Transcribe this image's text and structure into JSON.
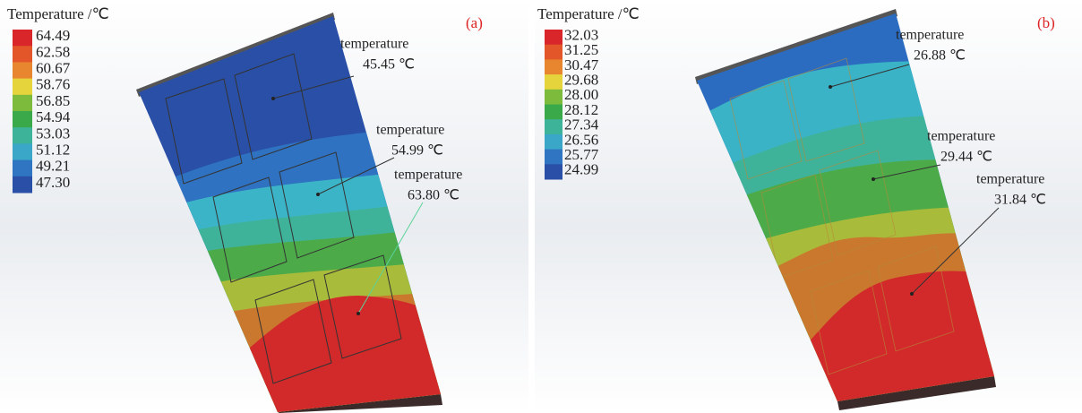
{
  "panels": [
    {
      "label": "(a)",
      "legend": {
        "title": "Temperature /℃",
        "values": [
          "64.49",
          "62.58",
          "60.67",
          "58.76",
          "56.85",
          "54.94",
          "53.03",
          "51.12",
          "49.21",
          "47.30"
        ]
      },
      "annotations": [
        {
          "label": "temperature",
          "value": "45.45 ℃"
        },
        {
          "label": "temperature",
          "value": "54.99 ℃"
        },
        {
          "label": "temperature",
          "value": "63.80 ℃"
        }
      ]
    },
    {
      "label": "(b)",
      "legend": {
        "title": "Temperature /℃",
        "values": [
          "32.03",
          "31.25",
          "30.47",
          "29.68",
          "28.00",
          "28.12",
          "27.34",
          "26.56",
          "25.77",
          "24.99"
        ]
      },
      "annotations": [
        {
          "label": "temperature",
          "value": "26.88 ℃"
        },
        {
          "label": "temperature",
          "value": "29.44 ℃"
        },
        {
          "label": "temperature",
          "value": "31.84 ℃"
        }
      ]
    }
  ]
}
